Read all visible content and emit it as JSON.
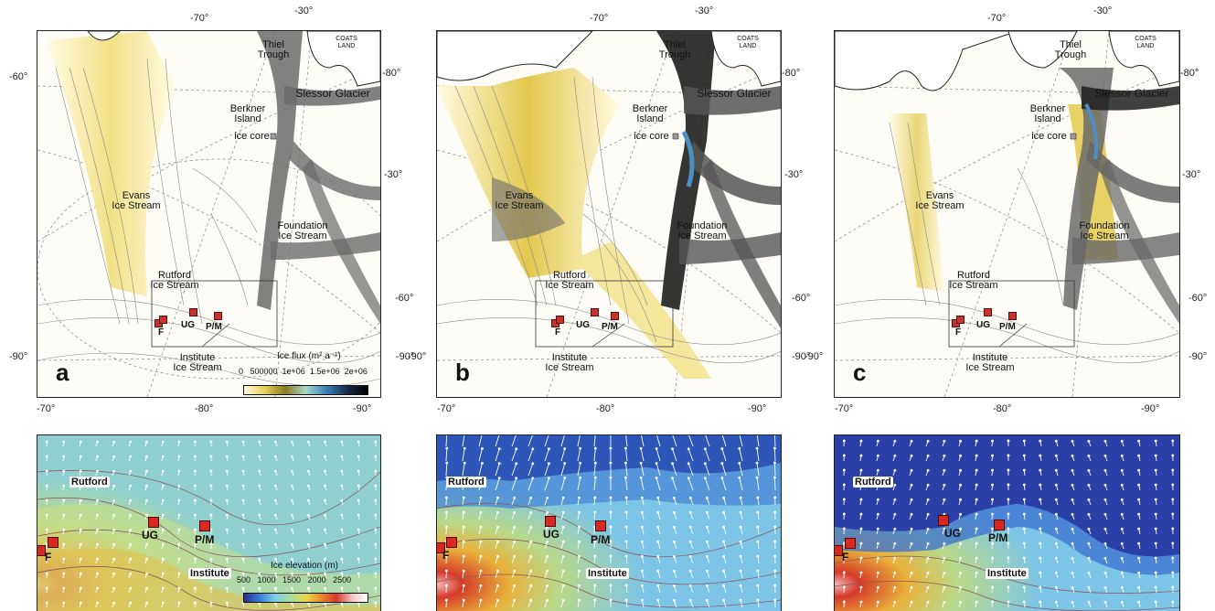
{
  "top_panels": [
    {
      "letter": "a",
      "labels": {
        "thiel": "Thiel\nTrough",
        "coats": "COATS\nLAND",
        "slessor": "Slessor Glacier",
        "berkner": "Berkner\nIsland",
        "icecore": "ice core",
        "evans": "Evans\nIce Stream",
        "foundation": "Foundation\nIce Stream",
        "rutford": "Rutford\nIce Stream",
        "institute": "Institute\nIce Stream"
      },
      "sites": [
        "F",
        "UG",
        "P/M"
      ],
      "legend": {
        "title": "Ice flux (m² a⁻¹)",
        "ticks": "0   500000  1e+06  1.5e+06  2e+06"
      },
      "degrees": {
        "tl": "-70°",
        "tr1": "-30°",
        "r1": "-80°",
        "r2": "-30°",
        "r3": "-60°",
        "r4": "-90°",
        "l1": "-60°",
        "l2": "-90°",
        "b1": "-70°",
        "b2": "-80°",
        "b3": "-90°"
      }
    },
    {
      "letter": "b",
      "labels": {
        "thiel": "Thiel\nTrough",
        "coats": "COATS\nLAND",
        "slessor": "Slessor Glacier",
        "berkner": "Berkner\nIsland",
        "icecore": "ice core",
        "evans": "Evans\nIce Stream",
        "foundation": "Foundation\nIce Stream",
        "rutford": "Rutford\nIce Stream",
        "institute": "Institute\nIce Stream"
      },
      "sites": [
        "F",
        "UG",
        "P/M"
      ],
      "degrees": {
        "tl": "-70°",
        "tr1": "-30°",
        "r1": "-80°",
        "r2": "-30°",
        "r3": "-60°",
        "r4": "-90°",
        "l1": "-60°",
        "l2": "-90°",
        "b1": "-70°",
        "b2": "-80°",
        "b3": "-90°"
      }
    },
    {
      "letter": "c",
      "labels": {
        "thiel": "Thiel\nTrough",
        "coats": "COATS\nLAND",
        "slessor": "Slessor Glacier",
        "berkner": "Berkner\nIsland",
        "icecore": "ice core",
        "evans": "Evans\nIce Stream",
        "foundation": "Foundation\nIce Stream",
        "rutford": "Rutford\nIce Stream",
        "institute": "Institute\nIce Stream"
      },
      "sites": [
        "F",
        "UG",
        "P/M"
      ],
      "degrees": {
        "tl": "-70°",
        "tr1": "-30°",
        "r1": "-80°",
        "r2": "-30°",
        "r3": "-60°",
        "r4": "-90°",
        "l1": "-60°",
        "l2": "-90°",
        "b1": "-70°",
        "b2": "-80°",
        "b3": "-90°"
      }
    }
  ],
  "bottom_panels": [
    {
      "rutford": "Rutford",
      "institute": "Institute",
      "sites": [
        "F",
        "UG",
        "P/M"
      ],
      "legend": {
        "title": "Ice elevation (m)",
        "ticks": "500   1000   1500   2000   2500"
      }
    },
    {
      "rutford": "Rutford",
      "institute": "Institute",
      "sites": [
        "F",
        "UG",
        "P/M"
      ]
    },
    {
      "rutford": "Rutford",
      "institute": "Institute",
      "sites": [
        "F",
        "UG",
        "P/M"
      ]
    }
  ],
  "colors": {
    "flux_low": "#fffde8",
    "flux_mid": "#d9b52a",
    "flux_high": "#1a1a1a",
    "flux_blue": "#2c6fb0",
    "contour": "#777777",
    "site_red": "#d8281f",
    "elev_low": "#2a3f9e",
    "elev_mid": "#7cc5e6",
    "elev_high": "#d63a2a"
  }
}
